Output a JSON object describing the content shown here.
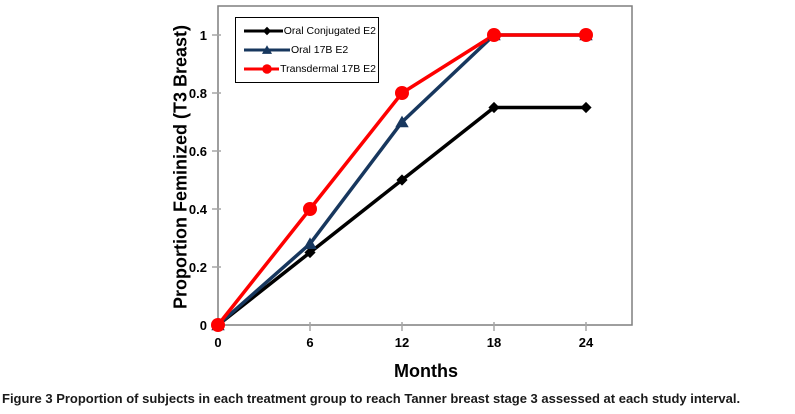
{
  "figure": {
    "caption_label": "Figure 3",
    "caption_text": " Proportion of subjects in each treatment group to reach Tanner breast stage 3 assessed at each study interval."
  },
  "chart_data": {
    "type": "line",
    "title": "",
    "xlabel": "Months",
    "ylabel": "Proportion Feminized (T3 Breast)",
    "x": [
      0,
      6,
      12,
      18,
      24
    ],
    "x_ticks": [
      "0",
      "6",
      "12",
      "18",
      "24"
    ],
    "y_ticks": [
      "0",
      "0.2",
      "0.4",
      "0.6",
      "0.8",
      "1"
    ],
    "y_tick_values": [
      0,
      0.2,
      0.4,
      0.6,
      0.8,
      1
    ],
    "xlim": [
      0,
      27
    ],
    "ylim": [
      0,
      1.1
    ],
    "grid": false,
    "legend_position": "top-left-inside",
    "series": [
      {
        "name": "Oral Conjugated E2",
        "marker": "diamond",
        "color": "#000000",
        "values": [
          0,
          0.25,
          0.5,
          0.75,
          0.75
        ]
      },
      {
        "name": "Oral 17B E2",
        "marker": "triangle",
        "color": "#17375E",
        "values": [
          0,
          0.28,
          0.7,
          1.0,
          1.0
        ]
      },
      {
        "name": "Transdermal 17B E2",
        "marker": "circle",
        "color": "#FE0000",
        "values": [
          0,
          0.4,
          0.8,
          1.0,
          1.0
        ]
      }
    ],
    "axis_color": "#7f7f7f",
    "tick_color": "#a6a6a6",
    "text_color": "#000000"
  }
}
